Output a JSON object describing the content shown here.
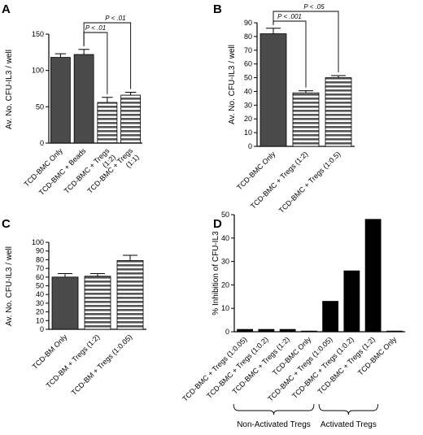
{
  "colors": {
    "solid_gray": "#4a4a4a",
    "stripe": "#555555",
    "bar_black": "#000000",
    "axis": "#000000"
  },
  "chart_data": [
    {
      "panel": "A",
      "type": "bar",
      "ylabel": "Av. No. CFU-IL3 / well",
      "ylim": [
        0,
        150
      ],
      "yticks": [
        0,
        50,
        100,
        150
      ],
      "categories": [
        "TCD-BMC Only",
        "TCD-BMC + Beads",
        "TCD-BMC + Tregs (1:2)",
        "TCD-BMC + Tregs (1:1)"
      ],
      "category_lines": [
        [
          "TCD-BMC Only"
        ],
        [
          "TCD-BMC + Beads"
        ],
        [
          "TCD-BMC + Tregs",
          "(1:2)"
        ],
        [
          "TCD-BMC + Tregs",
          "(1:1)"
        ]
      ],
      "values": [
        118,
        122,
        56,
        66
      ],
      "errors": [
        5,
        7,
        7,
        4
      ],
      "fills": [
        "solid",
        "solid",
        "stripe",
        "stripe"
      ],
      "significance": [
        {
          "label": "P < .01",
          "from": 1,
          "to": 2
        },
        {
          "label": "P < .01",
          "from": 1,
          "to": 3
        }
      ]
    },
    {
      "panel": "B",
      "type": "bar",
      "ylabel": "Av. No. CFU-IL3 / well",
      "ylim": [
        0,
        90
      ],
      "yticks": [
        0,
        10,
        20,
        30,
        40,
        50,
        60,
        70,
        80,
        90
      ],
      "categories": [
        "TCD-BMC Only",
        "TCD-BMC + Tregs (1:2)",
        "TCD-BMC + Tregs (1:0.5)"
      ],
      "category_lines": [
        [
          "TCD-BMC Only"
        ],
        [
          "TCD-BMC + Tregs (1:2)"
        ],
        [
          "TCD-BMC + Tregs (1:0.5)"
        ]
      ],
      "values": [
        82,
        39,
        50
      ],
      "errors": [
        4,
        1.5,
        1.5
      ],
      "fills": [
        "solid",
        "stripe",
        "stripe"
      ],
      "significance": [
        {
          "label": "P < .001",
          "from": 0,
          "to": 1
        },
        {
          "label": "P < .05",
          "from": 0,
          "to": 2
        }
      ]
    },
    {
      "panel": "C",
      "type": "bar",
      "ylabel": "Av. No. CFU-IL3 / well",
      "ylim": [
        0,
        100
      ],
      "yticks": [
        0,
        10,
        20,
        30,
        40,
        50,
        60,
        70,
        80,
        90,
        100
      ],
      "categories": [
        "TCD-BM Only",
        "TCD-BM + Tregs (1:2)",
        "TCD-BM + Tregs (1:0.05)"
      ],
      "category_lines": [
        [
          "TCD-BM Only"
        ],
        [
          "TCD-BM + Tregs (1:2)"
        ],
        [
          "TCD-BM + Tregs (1:0.05)"
        ]
      ],
      "values": [
        60,
        61,
        79
      ],
      "errors": [
        4,
        3,
        6
      ],
      "fills": [
        "solid",
        "stripe",
        "stripe"
      ],
      "significance": []
    },
    {
      "panel": "D",
      "type": "bar",
      "ylabel": "% Inhibition of CFU-IL3",
      "ylim": [
        0,
        50
      ],
      "yticks": [
        0,
        10,
        20,
        30,
        40,
        50
      ],
      "categories": [
        "TCD-BMC + Tregs (1:0.05)",
        "TCD-BMC + Tregs (1:0.2)",
        "TCD-BMC + Tregs (1:2)",
        "TCD-BMC Only",
        "TCD-BMC + Tregs (1:0.05)",
        "TCD-BMC + Tregs (1:0.2)",
        "TCD-BMC + Tregs (1:2)",
        "TCD-BMC Only"
      ],
      "category_lines": [
        [
          "TCD-BMC + Tregs (1:0.05)"
        ],
        [
          "TCD-BMC + Tregs (1:0.2)"
        ],
        [
          "TCD-BMC + Tregs (1:2)"
        ],
        [
          "TCD-BMC Only"
        ],
        [
          "TCD-BMC + Tregs (1:0.05)"
        ],
        [
          "TCD-BMC + Tregs (1:0.2)"
        ],
        [
          "TCD-BMC + Tregs (1:2)"
        ],
        [
          "TCD-BMC Only"
        ]
      ],
      "values": [
        1,
        1,
        1,
        0.3,
        13,
        26,
        48,
        0.3
      ],
      "errors": [
        0,
        0,
        0,
        0,
        0,
        0,
        0,
        0
      ],
      "fills": [
        "black",
        "black",
        "black",
        "black",
        "black",
        "black",
        "black",
        "black"
      ],
      "significance": [],
      "groups": [
        {
          "label": "Non-Activated Tregs",
          "from": 0,
          "to": 3
        },
        {
          "label": "Activated Tregs",
          "from": 4,
          "to": 6
        }
      ]
    }
  ]
}
